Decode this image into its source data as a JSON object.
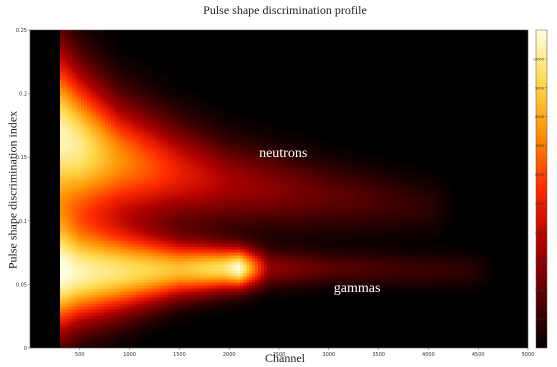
{
  "chart_data": {
    "type": "heatmap",
    "title": "Pulse shape discrimination profile",
    "xlabel": "Channel",
    "ylabel": "Pulse shape discrimination index",
    "xlim": [
      0,
      5000
    ],
    "ylim": [
      0,
      0.25
    ],
    "x_ticks": [
      "500",
      "1000",
      "1500",
      "2000",
      "2500",
      "3000",
      "3500",
      "4000",
      "4500",
      "5000"
    ],
    "y_ticks": [
      "0",
      "0.05",
      "0.1",
      "0.15",
      "0.2",
      "0.25"
    ],
    "colorbar_ticks": [
      "1000",
      "2000",
      "3000",
      "4000",
      "5000",
      "6000",
      "7000",
      "8000",
      "9000",
      "10000"
    ],
    "colorbar_range": [
      0,
      11000
    ],
    "colormap": [
      "#000000",
      "#5a0000",
      "#b00000",
      "#ff2a00",
      "#ff8c00",
      "#ffd84a",
      "#ffffe0"
    ],
    "bands": [
      {
        "label": "neutrons",
        "x": [
          330,
          500,
          900,
          1500,
          2000,
          3000,
          4000
        ],
        "y": [
          0.165,
          0.158,
          0.148,
          0.138,
          0.13,
          0.12,
          0.112
        ],
        "spread": [
          0.045,
          0.04,
          0.032,
          0.026,
          0.022,
          0.018,
          0.014
        ],
        "peak": [
          10500,
          10000,
          7500,
          5000,
          3500,
          2000,
          900
        ]
      },
      {
        "label": "gammas",
        "x": [
          330,
          500,
          900,
          1500,
          1950,
          2100,
          2400,
          3000,
          3700,
          4400
        ],
        "y": [
          0.058,
          0.058,
          0.06,
          0.062,
          0.063,
          0.063,
          0.063,
          0.063,
          0.062,
          0.061
        ],
        "spread": [
          0.03,
          0.026,
          0.022,
          0.015,
          0.012,
          0.011,
          0.01,
          0.009,
          0.009,
          0.009
        ],
        "peak": [
          10500,
          10000,
          9500,
          8500,
          9500,
          11000,
          3000,
          1800,
          1300,
          900
        ]
      }
    ],
    "annotations": [
      {
        "text": "neutrons",
        "x": 2300,
        "y": 0.15
      },
      {
        "text": "gammas",
        "x": 3050,
        "y": 0.044
      }
    ]
  }
}
